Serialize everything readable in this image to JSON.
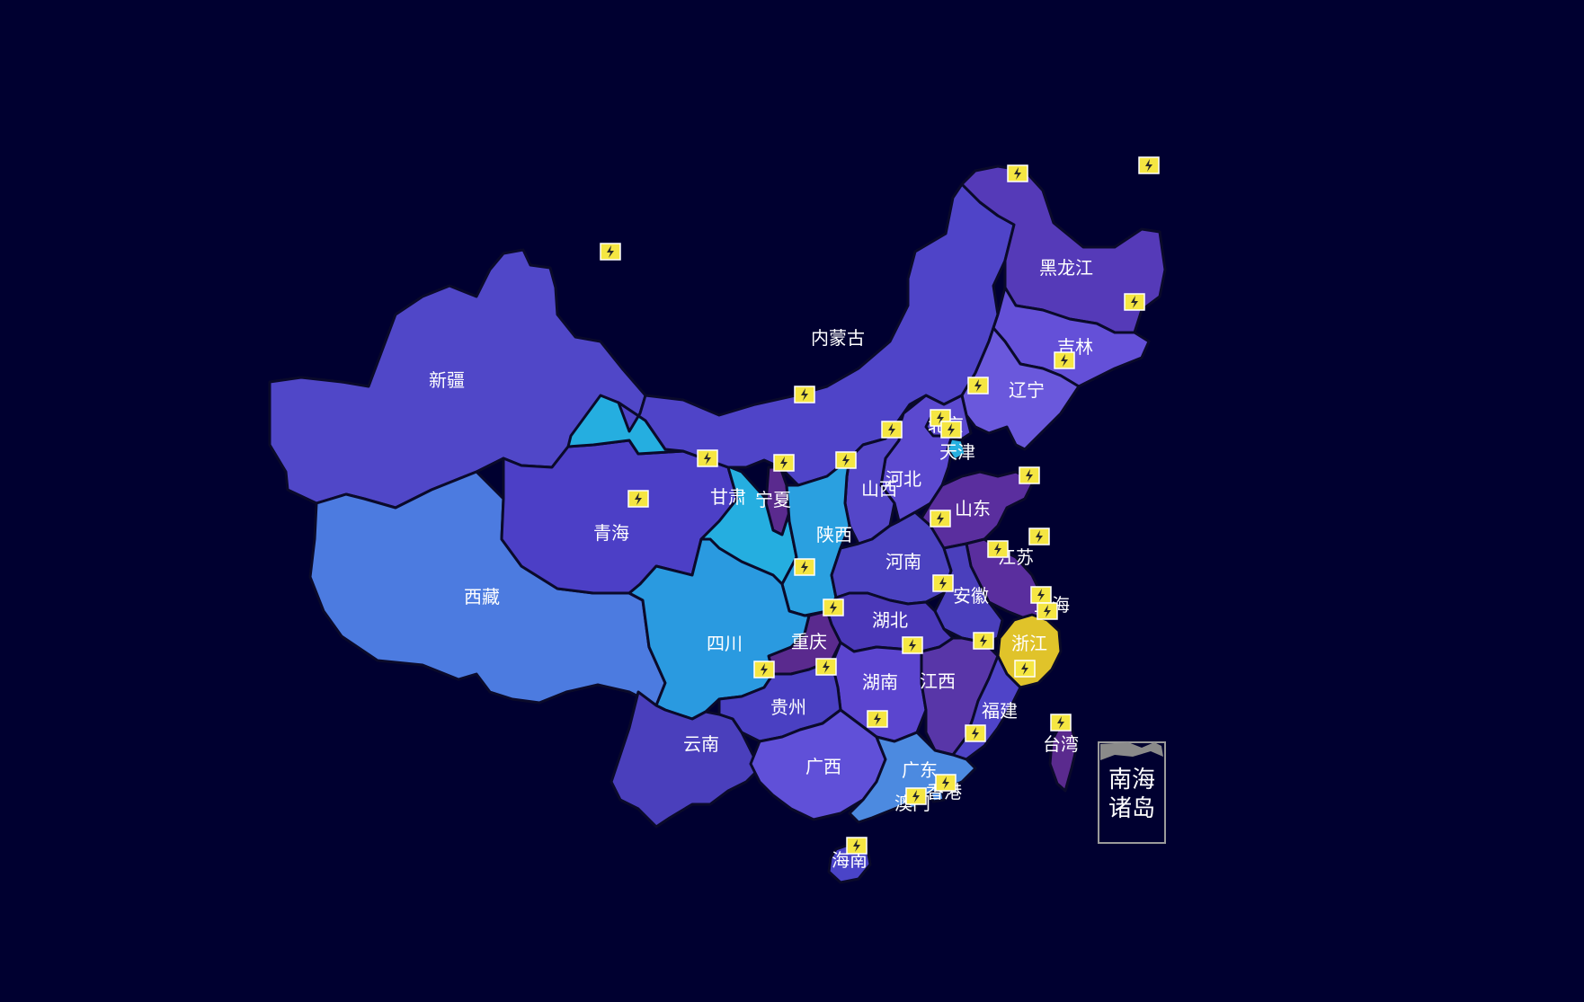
{
  "colors": {
    "background": "#000030",
    "highlight": "#e0c32a",
    "marker": "#f5e642",
    "border": "#0a0a2a"
  },
  "marker_icon": "lightning-bolt-icon",
  "provinces": [
    {
      "id": "xinjiang",
      "label": "新疆",
      "color": "#5047c8"
    },
    {
      "id": "xizang",
      "label": "西藏",
      "color": "#4c7be0"
    },
    {
      "id": "qinghai",
      "label": "青海",
      "color": "#4c3fc6"
    },
    {
      "id": "gansu",
      "label": "甘肃",
      "color": "#25aee0"
    },
    {
      "id": "neimenggu",
      "label": "内蒙古",
      "color": "#4f44c8"
    },
    {
      "id": "heilongjiang",
      "label": "黑龙江",
      "color": "#553ab8"
    },
    {
      "id": "jilin",
      "label": "吉林",
      "color": "#6450d8"
    },
    {
      "id": "liaoning",
      "label": "辽宁",
      "color": "#6a58dc"
    },
    {
      "id": "beijing",
      "label": "北京",
      "color": "#5a48cc"
    },
    {
      "id": "tianjin",
      "label": "天津",
      "color": "#26b0e0"
    },
    {
      "id": "hebei",
      "label": "河北",
      "color": "#5b49cf"
    },
    {
      "id": "shanxi",
      "label": "山西",
      "color": "#5446c8"
    },
    {
      "id": "shandong",
      "label": "山东",
      "color": "#5a2e9e"
    },
    {
      "id": "ningxia",
      "label": "宁夏",
      "color": "#5a2a8e"
    },
    {
      "id": "shaanxi",
      "label": "陕西",
      "color": "#2aa0e0"
    },
    {
      "id": "henan",
      "label": "河南",
      "color": "#4b42c0"
    },
    {
      "id": "jiangsu",
      "label": "江苏",
      "color": "#5a2e9e"
    },
    {
      "id": "anhui",
      "label": "安徽",
      "color": "#4a3fbc"
    },
    {
      "id": "hubei",
      "label": "湖北",
      "color": "#4a38b8"
    },
    {
      "id": "sichuan",
      "label": "四川",
      "color": "#2a9ae0"
    },
    {
      "id": "chongqing",
      "label": "重庆",
      "color": "#5a2a8e"
    },
    {
      "id": "zhejiang",
      "label": "浙江",
      "color": "#e0c32a"
    },
    {
      "id": "shanghai",
      "label": "上海",
      "color": "#5a48cc"
    },
    {
      "id": "hunan",
      "label": "湖南",
      "color": "#5b45cf"
    },
    {
      "id": "jiangxi",
      "label": "江西",
      "color": "#5836a8"
    },
    {
      "id": "fujian",
      "label": "福建",
      "color": "#4f44c8"
    },
    {
      "id": "guizhou",
      "label": "贵州",
      "color": "#4a40c2"
    },
    {
      "id": "yunnan",
      "label": "云南",
      "color": "#4a3fbc"
    },
    {
      "id": "guangxi",
      "label": "广西",
      "color": "#6050d8"
    },
    {
      "id": "guangdong",
      "label": "广东",
      "color": "#4c8ae0"
    },
    {
      "id": "hainan",
      "label": "海南",
      "color": "#4a44c8"
    },
    {
      "id": "taiwan",
      "label": "台湾",
      "color": "#5a2a8e"
    },
    {
      "id": "hongkong",
      "label": "香港",
      "color": "#4c8ae0"
    },
    {
      "id": "macau",
      "label": "澳门",
      "color": "#4c8ae0"
    }
  ],
  "inset": {
    "label_line1": "南海",
    "label_line2": "诸岛"
  }
}
